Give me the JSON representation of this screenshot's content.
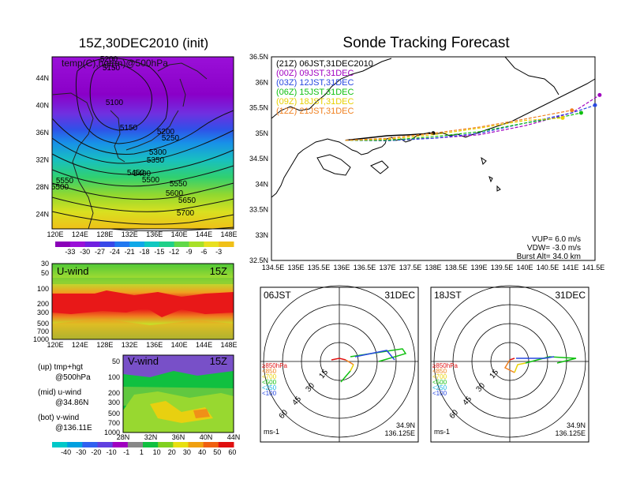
{
  "titles": {
    "left": "15Z,30DEC2010 (init)",
    "right": "Sonde Tracking Forecast"
  },
  "map_panel": {
    "label": "temp(C),hgt(m)@500hPa",
    "lat_ticks": [
      "44N",
      "40N",
      "36N",
      "32N",
      "28N",
      "24N"
    ],
    "lon_ticks": [
      "120E",
      "124E",
      "128E",
      "132E",
      "136E",
      "140E",
      "144E",
      "148E"
    ],
    "contour_labels": [
      "5200",
      "5150",
      "5100",
      "5150",
      "5200",
      "5250",
      "5300",
      "5350",
      "5400",
      "5450",
      "5500",
      "5550",
      "5550",
      "5600",
      "5650",
      "5700",
      "5500"
    ],
    "colorbar_ticks": [
      "-33",
      "-30",
      "-27",
      "-24",
      "-21",
      "-18",
      "-15",
      "-12",
      "-9",
      "-6",
      "-3"
    ],
    "colorbar_colors": [
      "#8a00b8",
      "#9a10d8",
      "#7020e0",
      "#3848e8",
      "#2078f0",
      "#10a8e8",
      "#10c8c0",
      "#20d088",
      "#60d848",
      "#a8e028",
      "#e8e020",
      "#f0c018"
    ]
  },
  "uwind_panel": {
    "label": "U-wind",
    "time": "15Z",
    "p_ticks": [
      "30",
      "50",
      "100",
      "200",
      "300",
      "500",
      "700",
      "1000"
    ],
    "lon_ticks": [
      "120E",
      "124E",
      "128E",
      "132E",
      "136E",
      "140E",
      "144E",
      "148E"
    ]
  },
  "vwind_panel": {
    "label": "V-wind",
    "time": "15Z",
    "p_ticks": [
      "50",
      "100",
      "200",
      "300",
      "500",
      "700",
      "1000"
    ],
    "lat_ticks": [
      "28N",
      "32N",
      "36N",
      "40N",
      "44N"
    ]
  },
  "legend_notes": [
    {
      "a": "(up) tmp+hgt",
      "b": "@500hPa"
    },
    {
      "a": "(mid) u-wind",
      "b": "@34.86N"
    },
    {
      "a": "(bot) v-wind",
      "b": "@136.11E"
    }
  ],
  "wind_colorbar": {
    "ticks": [
      "-40",
      "-30",
      "-20",
      "-10",
      "-1",
      "1",
      "10",
      "20",
      "30",
      "40",
      "50",
      "60"
    ],
    "colors": [
      "#00c8c8",
      "#00a0e0",
      "#3060f0",
      "#6040e0",
      "#a000c0",
      "#888888",
      "#10c040",
      "#80d020",
      "#e8e010",
      "#f0a010",
      "#f06010",
      "#e01010"
    ]
  },
  "track_map": {
    "lat_ticks": [
      "36.5N",
      "36N",
      "35.5N",
      "35N",
      "34.5N",
      "34N",
      "33.5N",
      "33N",
      "32.5N"
    ],
    "lon_ticks": [
      "134.5E",
      "135E",
      "135.5E",
      "136E",
      "136.5E",
      "137E",
      "137.5E",
      "138E",
      "138.5E",
      "139E",
      "139.5E",
      "140E",
      "140.5E",
      "141E",
      "141.5E"
    ],
    "legend": [
      {
        "text": "(21Z)  06JST,31DEC2010",
        "color": "#000000"
      },
      {
        "text": "(00Z)  09JST,31DEC",
        "color": "#a000c0"
      },
      {
        "text": "(03Z)  12JST,31DEC",
        "color": "#2848e0"
      },
      {
        "text": "(06Z)  15JST,31DEC",
        "color": "#10c010"
      },
      {
        "text": "(09Z)  18JST,31DEC",
        "color": "#e8d000"
      },
      {
        "text": "(12Z)  21JST,31DEC",
        "color": "#f08020"
      }
    ],
    "params": [
      "VUP=  6.0 m/s",
      "VDW= -3.0 m/s",
      "Burst Alt= 34.0 km"
    ]
  },
  "polar_panels": [
    {
      "label": "06JST",
      "date": "31DEC",
      "loc1": "34.9N",
      "loc2": "136.125E",
      "unit": "ms-1"
    },
    {
      "label": "18JST",
      "date": "31DEC",
      "loc1": "34.9N",
      "loc2": "136.125E",
      "unit": "ms-1"
    }
  ],
  "polar_rings": [
    "15",
    "30",
    "45",
    "60"
  ],
  "polar_levels": [
    {
      "text": "≥850hPa",
      "color": "#e01010"
    },
    {
      "text": "<850",
      "color": "#f08020"
    },
    {
      "text": "<700",
      "color": "#e8d000"
    },
    {
      "text": "<500",
      "color": "#10c010"
    },
    {
      "text": "<250",
      "color": "#10b0e0"
    },
    {
      "text": "<100",
      "color": "#2848e0"
    }
  ],
  "chart_data": [
    {
      "type": "heatmap",
      "title": "15Z,30DEC2010 (init)",
      "variable": "temp(C),hgt(m)@500hPa",
      "xlim": [
        120,
        150
      ],
      "ylim": [
        22,
        48
      ],
      "contour_levels": [
        5100,
        5150,
        5200,
        5250,
        5300,
        5350,
        5400,
        5450,
        5500,
        5550,
        5600,
        5650,
        5700
      ],
      "colorbar": [
        -33,
        -30,
        -27,
        -24,
        -21,
        -18,
        -15,
        -12,
        -9,
        -6,
        -3
      ]
    },
    {
      "type": "line",
      "title": "Sonde Tracking Forecast",
      "xlim": [
        134.5,
        141.5
      ],
      "ylim": [
        32.5,
        36.5
      ],
      "series": [
        {
          "name": "(21Z) 06JST,31DEC2010",
          "x": [
            136.1,
            136.5,
            137.0,
            137.5,
            138.0
          ],
          "y": [
            34.86,
            34.9,
            34.95,
            34.97,
            35.0
          ]
        },
        {
          "name": "(00Z) 09JST,31DEC",
          "x": [
            136.1,
            137.0,
            138.0,
            139.0,
            140.0,
            141.0,
            141.6
          ],
          "y": [
            34.86,
            34.87,
            34.9,
            34.97,
            35.15,
            35.4,
            35.75
          ]
        },
        {
          "name": "(03Z) 12JST,31DEC",
          "x": [
            136.1,
            137.0,
            138.0,
            139.0,
            140.0,
            141.0,
            141.5
          ],
          "y": [
            34.86,
            34.85,
            34.9,
            35.0,
            35.2,
            35.4,
            35.55
          ]
        },
        {
          "name": "(06Z) 15JST,31DEC",
          "x": [
            136.1,
            137.0,
            138.0,
            139.0,
            140.0,
            140.8,
            141.2
          ],
          "y": [
            34.86,
            34.86,
            34.93,
            35.03,
            35.2,
            35.32,
            35.4
          ]
        },
        {
          "name": "(09Z) 18JST,31DEC",
          "x": [
            136.1,
            137.0,
            138.0,
            139.0,
            140.0,
            140.8
          ],
          "y": [
            34.86,
            34.88,
            34.97,
            35.1,
            35.25,
            35.3
          ]
        },
        {
          "name": "(12Z) 21JST,31DEC",
          "x": [
            136.1,
            137.0,
            138.0,
            139.0,
            140.0,
            141.0
          ],
          "y": [
            34.86,
            34.9,
            35.0,
            35.12,
            35.28,
            35.45
          ]
        }
      ]
    },
    {
      "type": "heatmap",
      "variable": "U-wind",
      "time": "15Z",
      "xlim": [
        120,
        150
      ],
      "plevels": [
        1000,
        700,
        500,
        300,
        200,
        100,
        50,
        30
      ]
    },
    {
      "type": "heatmap",
      "variable": "V-wind",
      "time": "15Z",
      "xlim": [
        28,
        44
      ],
      "plevels": [
        1000,
        700,
        500,
        300,
        200,
        100,
        50
      ]
    }
  ]
}
